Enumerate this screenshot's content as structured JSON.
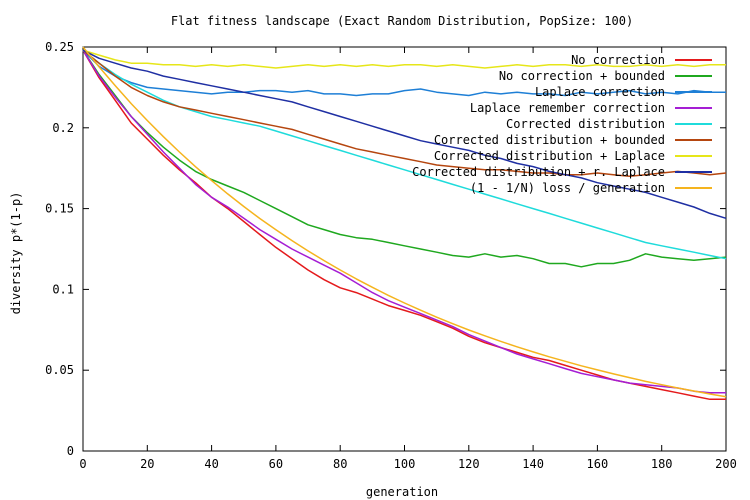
{
  "chart_data": {
    "type": "line",
    "title": "Flat fitness landscape (Exact Random Distribution, PopSize: 100)",
    "xlabel": "generation",
    "ylabel": "diversity p*(1-p)",
    "xlim": [
      0,
      200
    ],
    "ylim": [
      0,
      0.25
    ],
    "xticks": [
      0,
      20,
      40,
      60,
      80,
      100,
      120,
      140,
      160,
      180,
      200
    ],
    "xtick_labels": [
      "0",
      "20",
      "40",
      "60",
      "80",
      "100",
      "120",
      "140",
      "160",
      "180",
      "200"
    ],
    "yticks": [
      0,
      0.05,
      0.1,
      0.15,
      0.2,
      0.25
    ],
    "ytick_labels": [
      "0",
      "0.05",
      "0.1",
      "0.15",
      "0.2",
      "0.25"
    ],
    "grid": false,
    "legend_position": "top-right",
    "series": [
      {
        "name": "No correction",
        "color": "#e41a1c",
        "x": [
          0,
          5,
          10,
          15,
          20,
          25,
          30,
          35,
          40,
          45,
          50,
          55,
          60,
          65,
          70,
          75,
          80,
          85,
          90,
          95,
          100,
          105,
          110,
          115,
          120,
          125,
          130,
          135,
          140,
          145,
          150,
          155,
          160,
          165,
          170,
          175,
          180,
          185,
          190,
          195,
          200
        ],
        "y": [
          0.248,
          0.231,
          0.217,
          0.203,
          0.193,
          0.183,
          0.174,
          0.166,
          0.157,
          0.15,
          0.142,
          0.134,
          0.126,
          0.119,
          0.112,
          0.106,
          0.101,
          0.098,
          0.094,
          0.09,
          0.087,
          0.084,
          0.08,
          0.076,
          0.071,
          0.067,
          0.064,
          0.061,
          0.058,
          0.056,
          0.053,
          0.05,
          0.047,
          0.044,
          0.042,
          0.04,
          0.038,
          0.036,
          0.034,
          0.032,
          0.032
        ]
      },
      {
        "name": "No correction + bounded",
        "color": "#1fa81f",
        "x": [
          0,
          5,
          10,
          15,
          20,
          25,
          30,
          35,
          40,
          45,
          50,
          55,
          60,
          65,
          70,
          75,
          80,
          85,
          90,
          95,
          100,
          105,
          110,
          115,
          120,
          125,
          130,
          135,
          140,
          145,
          150,
          155,
          160,
          165,
          170,
          175,
          180,
          185,
          190,
          195,
          200
        ],
        "y": [
          0.248,
          0.233,
          0.22,
          0.207,
          0.197,
          0.188,
          0.18,
          0.173,
          0.168,
          0.164,
          0.16,
          0.155,
          0.15,
          0.145,
          0.14,
          0.137,
          0.134,
          0.132,
          0.131,
          0.129,
          0.127,
          0.125,
          0.123,
          0.121,
          0.12,
          0.122,
          0.12,
          0.121,
          0.119,
          0.116,
          0.116,
          0.114,
          0.116,
          0.116,
          0.118,
          0.122,
          0.12,
          0.119,
          0.118,
          0.119,
          0.12
        ]
      },
      {
        "name": "Laplace correction",
        "color": "#1e7fd6",
        "x": [
          0,
          5,
          10,
          15,
          20,
          25,
          30,
          35,
          40,
          45,
          50,
          55,
          60,
          65,
          70,
          75,
          80,
          85,
          90,
          95,
          100,
          105,
          110,
          115,
          120,
          125,
          130,
          135,
          140,
          145,
          150,
          155,
          160,
          165,
          170,
          175,
          180,
          185,
          190,
          195,
          200
        ],
        "y": [
          0.248,
          0.238,
          0.232,
          0.228,
          0.225,
          0.224,
          0.223,
          0.222,
          0.221,
          0.222,
          0.222,
          0.223,
          0.223,
          0.222,
          0.223,
          0.221,
          0.221,
          0.22,
          0.221,
          0.221,
          0.223,
          0.224,
          0.222,
          0.221,
          0.22,
          0.222,
          0.221,
          0.222,
          0.221,
          0.221,
          0.22,
          0.222,
          0.221,
          0.222,
          0.223,
          0.221,
          0.222,
          0.221,
          0.223,
          0.222,
          0.222
        ]
      },
      {
        "name": "Laplace remember correction",
        "color": "#a51ed4",
        "x": [
          0,
          5,
          10,
          15,
          20,
          25,
          30,
          35,
          40,
          45,
          50,
          55,
          60,
          65,
          70,
          75,
          80,
          85,
          90,
          95,
          100,
          105,
          110,
          115,
          120,
          125,
          130,
          135,
          140,
          145,
          150,
          155,
          160,
          165,
          170,
          175,
          180,
          185,
          190,
          195,
          200
        ],
        "y": [
          0.248,
          0.232,
          0.219,
          0.207,
          0.196,
          0.185,
          0.175,
          0.165,
          0.157,
          0.151,
          0.144,
          0.137,
          0.131,
          0.125,
          0.12,
          0.115,
          0.11,
          0.104,
          0.098,
          0.093,
          0.089,
          0.085,
          0.081,
          0.077,
          0.072,
          0.068,
          0.064,
          0.06,
          0.057,
          0.054,
          0.051,
          0.048,
          0.046,
          0.044,
          0.042,
          0.041,
          0.04,
          0.039,
          0.037,
          0.036,
          0.036
        ]
      },
      {
        "name": "Corrected distribution",
        "color": "#1fdbdb",
        "x": [
          0,
          5,
          10,
          15,
          20,
          25,
          30,
          35,
          40,
          45,
          50,
          55,
          60,
          65,
          70,
          75,
          80,
          85,
          90,
          95,
          100,
          105,
          110,
          115,
          120,
          125,
          130,
          135,
          140,
          145,
          150,
          155,
          160,
          165,
          170,
          175,
          180,
          185,
          190,
          195,
          200
        ],
        "y": [
          0.248,
          0.24,
          0.233,
          0.227,
          0.222,
          0.217,
          0.213,
          0.21,
          0.207,
          0.205,
          0.203,
          0.201,
          0.198,
          0.195,
          0.192,
          0.189,
          0.186,
          0.183,
          0.18,
          0.177,
          0.174,
          0.171,
          0.168,
          0.165,
          0.162,
          0.159,
          0.156,
          0.153,
          0.15,
          0.147,
          0.144,
          0.141,
          0.138,
          0.135,
          0.132,
          0.129,
          0.127,
          0.125,
          0.123,
          0.121,
          0.119
        ]
      },
      {
        "name": "Corrected distribution + bounded",
        "color": "#b5460f",
        "x": [
          0,
          5,
          10,
          15,
          20,
          25,
          30,
          35,
          40,
          45,
          50,
          55,
          60,
          65,
          70,
          75,
          80,
          85,
          90,
          95,
          100,
          105,
          110,
          115,
          120,
          125,
          130,
          135,
          140,
          145,
          150,
          155,
          160,
          165,
          170,
          175,
          180,
          185,
          190,
          195,
          200
        ],
        "y": [
          0.248,
          0.24,
          0.232,
          0.225,
          0.22,
          0.216,
          0.213,
          0.211,
          0.209,
          0.207,
          0.205,
          0.203,
          0.201,
          0.199,
          0.196,
          0.193,
          0.19,
          0.187,
          0.185,
          0.183,
          0.181,
          0.179,
          0.177,
          0.176,
          0.175,
          0.174,
          0.174,
          0.173,
          0.172,
          0.172,
          0.171,
          0.171,
          0.172,
          0.171,
          0.17,
          0.171,
          0.172,
          0.173,
          0.172,
          0.171,
          0.172
        ]
      },
      {
        "name": "Corrected distribution + Laplace",
        "color": "#e6e619",
        "x": [
          0,
          5,
          10,
          15,
          20,
          25,
          30,
          35,
          40,
          45,
          50,
          55,
          60,
          65,
          70,
          75,
          80,
          85,
          90,
          95,
          100,
          105,
          110,
          115,
          120,
          125,
          130,
          135,
          140,
          145,
          150,
          155,
          160,
          165,
          170,
          175,
          180,
          185,
          190,
          195,
          200
        ],
        "y": [
          0.248,
          0.245,
          0.242,
          0.24,
          0.24,
          0.239,
          0.239,
          0.238,
          0.239,
          0.238,
          0.239,
          0.238,
          0.237,
          0.238,
          0.239,
          0.238,
          0.239,
          0.238,
          0.239,
          0.238,
          0.239,
          0.239,
          0.238,
          0.239,
          0.238,
          0.237,
          0.238,
          0.239,
          0.238,
          0.239,
          0.239,
          0.238,
          0.239,
          0.238,
          0.238,
          0.239,
          0.238,
          0.239,
          0.238,
          0.239,
          0.239
        ]
      },
      {
        "name": "Corrected distribution + r. Laplace",
        "color": "#1f2fa3",
        "x": [
          0,
          5,
          10,
          15,
          20,
          25,
          30,
          35,
          40,
          45,
          50,
          55,
          60,
          65,
          70,
          75,
          80,
          85,
          90,
          95,
          100,
          105,
          110,
          115,
          120,
          125,
          130,
          135,
          140,
          145,
          150,
          155,
          160,
          165,
          170,
          175,
          180,
          185,
          190,
          195,
          200
        ],
        "y": [
          0.248,
          0.243,
          0.24,
          0.237,
          0.235,
          0.232,
          0.23,
          0.228,
          0.226,
          0.224,
          0.222,
          0.22,
          0.218,
          0.216,
          0.213,
          0.21,
          0.207,
          0.204,
          0.201,
          0.198,
          0.195,
          0.192,
          0.19,
          0.188,
          0.186,
          0.183,
          0.181,
          0.178,
          0.176,
          0.173,
          0.171,
          0.169,
          0.166,
          0.164,
          0.162,
          0.16,
          0.157,
          0.154,
          0.151,
          0.147,
          0.144
        ]
      },
      {
        "name": "(1 - 1/N) loss / generation",
        "color": "#f5b41e",
        "x": [
          0,
          5,
          10,
          15,
          20,
          25,
          30,
          35,
          40,
          45,
          50,
          55,
          60,
          65,
          70,
          75,
          80,
          85,
          90,
          95,
          100,
          105,
          110,
          115,
          120,
          125,
          130,
          135,
          140,
          145,
          150,
          155,
          160,
          165,
          170,
          175,
          180,
          185,
          190,
          195,
          200
        ],
        "y": [
          0.25,
          0.2377,
          0.2261,
          0.215,
          0.2045,
          0.1945,
          0.185,
          0.1759,
          0.1673,
          0.1591,
          0.1513,
          0.1439,
          0.1369,
          0.1302,
          0.1238,
          0.1178,
          0.112,
          0.1065,
          0.1013,
          0.0963,
          0.0916,
          0.0871,
          0.0828,
          0.0788,
          0.0749,
          0.0713,
          0.0678,
          0.0645,
          0.0613,
          0.0583,
          0.0555,
          0.0527,
          0.0502,
          0.0477,
          0.0454,
          0.0431,
          0.041,
          0.039,
          0.0371,
          0.0353,
          0.0336
        ]
      }
    ]
  }
}
